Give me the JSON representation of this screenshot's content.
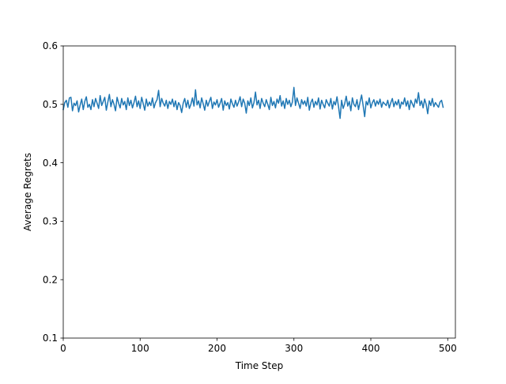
{
  "chart_data": {
    "type": "line",
    "title": "",
    "xlabel": "Time Step",
    "ylabel": "Average Regrets",
    "xlim": [
      0,
      510
    ],
    "ylim": [
      0.1,
      0.6
    ],
    "x_ticks": [
      0,
      100,
      200,
      300,
      400,
      500
    ],
    "y_ticks": [
      0.1,
      0.2,
      0.3,
      0.4,
      0.5,
      0.6
    ],
    "x_tick_labels": [
      "0",
      "100",
      "200",
      "300",
      "400",
      "500"
    ],
    "y_tick_labels": [
      "0.1",
      "0.2",
      "0.3",
      "0.4",
      "0.5",
      "0.6"
    ],
    "grid": false,
    "legend": "none",
    "series": [
      {
        "color": "#1f77b4",
        "x_start": 0,
        "x_step": 2,
        "values": [
          0.491,
          0.503,
          0.507,
          0.495,
          0.511,
          0.512,
          0.489,
          0.502,
          0.498,
          0.506,
          0.487,
          0.499,
          0.509,
          0.491,
          0.505,
          0.513,
          0.495,
          0.5,
          0.491,
          0.508,
          0.496,
          0.51,
          0.502,
          0.493,
          0.515,
          0.498,
          0.505,
          0.512,
          0.49,
          0.504,
          0.517,
          0.496,
          0.508,
          0.5,
          0.489,
          0.512,
          0.502,
          0.494,
          0.51,
          0.499,
          0.505,
          0.491,
          0.511,
          0.498,
          0.507,
          0.494,
          0.503,
          0.514,
          0.496,
          0.506,
          0.493,
          0.512,
          0.501,
          0.49,
          0.509,
          0.497,
          0.504,
          0.498,
          0.511,
          0.494,
          0.503,
          0.508,
          0.524,
          0.496,
          0.51,
          0.502,
          0.497,
          0.507,
          0.493,
          0.505,
          0.5,
          0.509,
          0.496,
          0.506,
          0.491,
          0.503,
          0.498,
          0.486,
          0.502,
          0.51,
          0.495,
          0.507,
          0.493,
          0.5,
          0.511,
          0.497,
          0.525,
          0.499,
          0.506,
          0.494,
          0.511,
          0.501,
          0.49,
          0.507,
          0.497,
          0.505,
          0.512,
          0.493,
          0.504,
          0.499,
          0.508,
          0.495,
          0.502,
          0.51,
          0.49,
          0.506,
          0.498,
          0.503,
          0.492,
          0.509,
          0.501,
          0.495,
          0.507,
          0.497,
          0.504,
          0.513,
          0.496,
          0.509,
          0.502,
          0.485,
          0.506,
          0.498,
          0.511,
          0.494,
          0.503,
          0.521,
          0.499,
          0.507,
          0.493,
          0.51,
          0.502,
          0.496,
          0.508,
          0.5,
          0.491,
          0.512,
          0.498,
          0.505,
          0.494,
          0.509,
          0.502,
          0.515,
          0.497,
          0.506,
          0.493,
          0.51,
          0.5,
          0.507,
          0.496,
          0.504,
          0.529,
          0.498,
          0.511,
          0.502,
          0.493,
          0.508,
          0.5,
          0.506,
          0.497,
          0.512,
          0.49,
          0.503,
          0.509,
          0.495,
          0.505,
          0.499,
          0.511,
          0.492,
          0.507,
          0.5,
          0.494,
          0.508,
          0.502,
          0.497,
          0.51,
          0.492,
          0.505,
          0.499,
          0.513,
          0.496,
          0.476,
          0.507,
          0.493,
          0.501,
          0.514,
          0.497,
          0.505,
          0.489,
          0.511,
          0.5,
          0.496,
          0.508,
          0.491,
          0.504,
          0.516,
          0.498,
          0.479,
          0.505,
          0.499,
          0.511,
          0.494,
          0.503,
          0.508,
          0.497,
          0.506,
          0.5,
          0.509,
          0.495,
          0.504,
          0.501,
          0.498,
          0.507,
          0.494,
          0.503,
          0.51,
          0.496,
          0.505,
          0.499,
          0.508,
          0.493,
          0.504,
          0.5,
          0.511,
          0.497,
          0.506,
          0.491,
          0.507,
          0.501,
          0.495,
          0.509,
          0.502,
          0.52,
          0.498,
          0.506,
          0.494,
          0.509,
          0.5,
          0.484,
          0.506,
          0.498,
          0.51,
          0.496,
          0.503,
          0.499,
          0.495,
          0.504,
          0.507,
          0.495
        ]
      }
    ]
  }
}
